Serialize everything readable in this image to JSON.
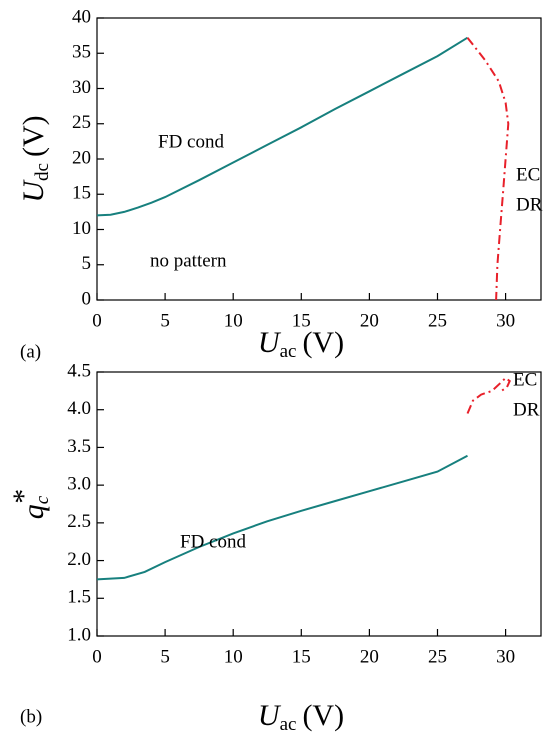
{
  "chart_data": [
    {
      "type": "line",
      "panel_label": "(a)",
      "xlabel": {
        "symbol": "U",
        "subscript": "ac",
        "unit": "(V)"
      },
      "ylabel": {
        "symbol": "U",
        "subscript": "dc",
        "unit": "(V)"
      },
      "xlim": [
        0,
        32.6
      ],
      "ylim": [
        0,
        40
      ],
      "xticks": [
        0,
        5,
        10,
        15,
        20,
        25,
        30
      ],
      "yticks": [
        0,
        5,
        10,
        15,
        20,
        25,
        30,
        35,
        40
      ],
      "series": [
        {
          "name": "FD cond",
          "color": "#17807e",
          "dash": "solid",
          "x": [
            0,
            1,
            2,
            3,
            4,
            5,
            7.5,
            10,
            12.5,
            15,
            17.5,
            20,
            22.5,
            25,
            27.2
          ],
          "values": [
            12,
            12.1,
            12.5,
            13.1,
            13.8,
            14.6,
            17,
            19.5,
            22,
            24.5,
            27.1,
            29.6,
            32.1,
            34.6,
            37.2
          ]
        },
        {
          "name": "EC DR",
          "color": "#e8202a",
          "dash": "dashdot",
          "x": [
            27.2,
            28.5,
            29.5,
            30,
            30.2,
            30,
            29.8,
            29.6,
            29.4,
            29.3
          ],
          "values": [
            37.2,
            34,
            31,
            28,
            25,
            20,
            15,
            10,
            5,
            0
          ]
        }
      ],
      "annotations": [
        "FD cond",
        "no pattern",
        "EC",
        "DR"
      ]
    },
    {
      "type": "line",
      "panel_label": "(b)",
      "xlabel": {
        "symbol": "U",
        "subscript": "ac",
        "unit": "(V)"
      },
      "ylabel": {
        "symbol": "q",
        "subscript": "c",
        "unit": "*"
      },
      "xlim": [
        0,
        32.6
      ],
      "ylim": [
        1,
        4.5
      ],
      "xticks": [
        0,
        5,
        10,
        15,
        20,
        25,
        30
      ],
      "yticks": [
        {
          "value": 1,
          "label": "1.0"
        },
        1.5,
        {
          "value": 2,
          "label": "2.0"
        },
        2.5,
        {
          "value": 3,
          "label": "3.0"
        },
        3.5,
        {
          "value": 4,
          "label": "4.0"
        },
        4.5
      ],
      "series": [
        {
          "name": "FD cond",
          "color": "#17807e",
          "dash": "solid",
          "x": [
            0,
            2,
            3.5,
            5,
            7.5,
            10,
            12.5,
            15,
            17.5,
            20,
            22.5,
            25,
            27.2
          ],
          "values": [
            1.75,
            1.77,
            1.85,
            1.98,
            2.18,
            2.36,
            2.52,
            2.66,
            2.79,
            2.92,
            3.05,
            3.18,
            3.39
          ]
        },
        {
          "name": "EC DR",
          "color": "#e8202a",
          "dash": "dashdot",
          "x": [
            27.2,
            27.6,
            28.2,
            29,
            29.6,
            30,
            30.3,
            30.1,
            29.7
          ],
          "values": [
            3.95,
            4.12,
            4.2,
            4.25,
            4.35,
            4.42,
            4.38,
            4.3,
            4.25
          ]
        }
      ],
      "annotations": [
        "FD cond",
        "EC",
        "DR"
      ]
    }
  ]
}
